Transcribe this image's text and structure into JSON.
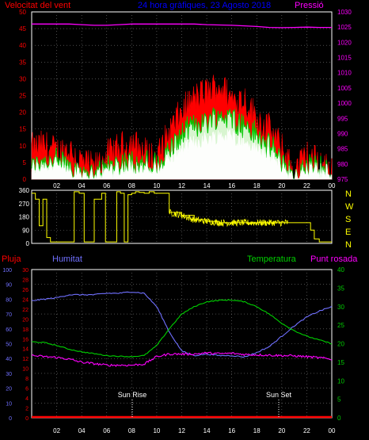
{
  "header": {
    "left_title": "Velocitat del vent",
    "center_title": "24 hora gràfiques, 23 Agosto 2018",
    "right_title": "Pressió"
  },
  "colors": {
    "wind_gust": "#ff0000",
    "wind_avg": "#ffffff",
    "wind_avg_fill": "#d8f5d0",
    "wind_line": "#00c800",
    "pressure": "#ff00ff",
    "direction": "#ffff00",
    "humidity": "#7070ff",
    "temperature": "#00d000",
    "dewpoint": "#ff00ff",
    "rain": "#ff0000",
    "frame": "#ffffff",
    "grid": "#7a7a7a",
    "axis_title_blue": "#0000ff",
    "axis_pressure": "#ff00ff"
  },
  "x_axis": {
    "ticks": [
      "02",
      "04",
      "06",
      "08",
      "10",
      "12",
      "14",
      "16",
      "18",
      "20",
      "22",
      "00"
    ]
  },
  "wind_panel": {
    "left_ticks": [
      "0",
      "5",
      "10",
      "15",
      "20",
      "25",
      "30",
      "35",
      "40",
      "45",
      "50"
    ],
    "right_ticks": [
      "975",
      "980",
      "985",
      "990",
      "995",
      "1000",
      "1005",
      "1010",
      "1015",
      "1020",
      "1025",
      "1030"
    ]
  },
  "direction_panel": {
    "ticks": [
      "0",
      "90",
      "180",
      "270",
      "360"
    ],
    "compass": [
      "N",
      "W",
      "S",
      "E",
      "N"
    ]
  },
  "climate_panel": {
    "labels": {
      "rain": "Pluja",
      "humidity": "Humitat",
      "temperature": "Temperatura",
      "dewpoint": "Punt rosada"
    },
    "rain_ticks": [
      "0",
      "2",
      "4",
      "6",
      "8",
      "10",
      "12",
      "14",
      "16",
      "18",
      "20",
      "22",
      "24",
      "26",
      "28",
      "30"
    ],
    "humidity_ticks": [
      "0",
      "10",
      "20",
      "30",
      "40",
      "50",
      "60",
      "70",
      "80",
      "90",
      "100"
    ],
    "temp_ticks": [
      "0",
      "5",
      "10",
      "15",
      "20",
      "25",
      "30",
      "35",
      "40"
    ],
    "sunrise_label": "Sun Rise",
    "sunset_label": "Sun Set"
  },
  "chart_data": [
    {
      "type": "line",
      "title": "24 hora gràfiques, 23 Agosto 2018",
      "xlabel": "",
      "ylabel": "Velocitat del vent",
      "ylim": [
        0,
        50
      ],
      "y2label": "Pressió",
      "y2lim": [
        975,
        1030
      ],
      "x": [
        0,
        1,
        2,
        3,
        4,
        5,
        6,
        7,
        8,
        9,
        10,
        11,
        12,
        13,
        14,
        15,
        16,
        17,
        18,
        19,
        20,
        21,
        22,
        23,
        24
      ],
      "series": [
        {
          "name": "wind_gust",
          "values": [
            9,
            10,
            8,
            9,
            5,
            3,
            7,
            9,
            11,
            8,
            6,
            14,
            20,
            24,
            26,
            28,
            24,
            24,
            18,
            15,
            9,
            2,
            7,
            5,
            3
          ]
        },
        {
          "name": "wind_avg",
          "values": [
            3,
            4,
            4,
            3,
            2,
            1,
            3,
            3,
            4,
            3,
            3,
            6,
            9,
            11,
            12,
            13,
            13,
            11,
            9,
            7,
            4,
            1,
            3,
            3,
            2
          ]
        },
        {
          "name": "Pressió",
          "values": [
            1026,
            1026,
            1026,
            1026,
            1025.8,
            1025.6,
            1025.6,
            1025.8,
            1026,
            1026,
            1026,
            1026,
            1026,
            1026,
            1025.8,
            1025.7,
            1025.6,
            1025.4,
            1025.2,
            1024.9,
            1024.8,
            1024.9,
            1025,
            1024.9,
            1024.9
          ]
        }
      ]
    },
    {
      "type": "line",
      "title": "",
      "ylabel": "",
      "ylim": [
        0,
        360
      ],
      "x": [
        0,
        0.3,
        0.6,
        0.9,
        1.2,
        1.5,
        1.8,
        2.1,
        2.4,
        2.7,
        3.0,
        3.4,
        3.8,
        4.2,
        4.6,
        5.0,
        5.3,
        5.6,
        5.9,
        6.2,
        6.5,
        6.8,
        7.1,
        7.4,
        7.7,
        8.0,
        8.3,
        8.6,
        9.0,
        9.4,
        9.8,
        10.2,
        10.6,
        11,
        12,
        13,
        14,
        15,
        16,
        17,
        18,
        19,
        20,
        20.5,
        21,
        21.5,
        22,
        22.3,
        22.6,
        23,
        23.5,
        24
      ],
      "series": [
        {
          "name": "wind_direction",
          "values": [
            340,
            300,
            120,
            300,
            40,
            10,
            10,
            10,
            10,
            10,
            10,
            350,
            340,
            10,
            10,
            300,
            300,
            340,
            10,
            10,
            10,
            350,
            340,
            10,
            330,
            340,
            350,
            345,
            340,
            350,
            340,
            340,
            340,
            210,
            190,
            160,
            150,
            140,
            140,
            140,
            140,
            140,
            140,
            140,
            140,
            140,
            140,
            90,
            30,
            10,
            10,
            10
          ]
        }
      ]
    },
    {
      "type": "line",
      "title": "",
      "ylabel": "Humitat",
      "ylim": [
        0,
        100
      ],
      "y2label": "Temperatura",
      "y2lim": [
        0,
        40
      ],
      "x": [
        0,
        1,
        2,
        3,
        4,
        5,
        6,
        7,
        8,
        9,
        10,
        11,
        12,
        13,
        14,
        15,
        16,
        17,
        18,
        19,
        20,
        21,
        22,
        23,
        24
      ],
      "series": [
        {
          "name": "Humitat",
          "values": [
            79,
            80,
            81,
            83,
            83,
            83,
            84,
            84,
            85,
            84,
            75,
            58,
            45,
            42,
            43,
            42,
            42,
            41,
            44,
            48,
            55,
            62,
            68,
            72,
            75
          ]
        },
        {
          "name": "Temperatura",
          "values": [
            20.5,
            20.3,
            19.5,
            18.5,
            17.8,
            17.3,
            16.8,
            16.6,
            16.5,
            16.8,
            19.5,
            24,
            28,
            30,
            31.3,
            31.7,
            31.8,
            31.3,
            30,
            28,
            25.5,
            23.5,
            22,
            21,
            20
          ]
        },
        {
          "name": "Punt rosada",
          "values": [
            16.8,
            16.5,
            16.3,
            15.8,
            15,
            14.6,
            14.2,
            14.2,
            14.2,
            14.5,
            16.5,
            17.2,
            17.2,
            17.2,
            17.5,
            17.3,
            17.4,
            17.1,
            17.0,
            16.9,
            16.8,
            16.7,
            16.5,
            16.2,
            15.8
          ]
        },
        {
          "name": "Pluja",
          "values": [
            0,
            0,
            0,
            0,
            0,
            0,
            0,
            0,
            0,
            0,
            0,
            0,
            0,
            0,
            0,
            0,
            0,
            0,
            0,
            0,
            0,
            0,
            0,
            0,
            0
          ]
        }
      ]
    }
  ]
}
